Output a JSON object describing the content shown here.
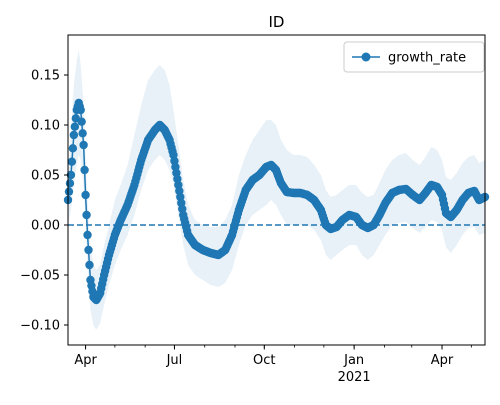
{
  "chart_data": {
    "type": "line",
    "title": "ID",
    "xlabel": "",
    "ylabel": "",
    "x_range": [
      "2020-03-14",
      "2021-05-15"
    ],
    "ylim": [
      -0.12,
      0.19
    ],
    "grid": false,
    "legend": "top-right",
    "x_ticks": [
      {
        "date": "2020-04-01",
        "label": "Apr",
        "sublabel": ""
      },
      {
        "date": "2020-07-01",
        "label": "Jul",
        "sublabel": ""
      },
      {
        "date": "2020-10-01",
        "label": "Oct",
        "sublabel": ""
      },
      {
        "date": "2021-01-01",
        "label": "Jan",
        "sublabel": "2021"
      },
      {
        "date": "2021-04-01",
        "label": "Apr",
        "sublabel": ""
      }
    ],
    "y_ticks": [
      {
        "value": -0.1,
        "label": "−0.10"
      },
      {
        "value": -0.05,
        "label": "−0.05"
      },
      {
        "value": 0.0,
        "label": "0.00"
      },
      {
        "value": 0.05,
        "label": "0.05"
      },
      {
        "value": 0.1,
        "label": "0.10"
      },
      {
        "value": 0.15,
        "label": "0.15"
      }
    ],
    "reference_line": {
      "value": 0.0,
      "style": "dashed"
    },
    "series": [
      {
        "name": "growth_rate",
        "color": "#1f77b4",
        "marker": "circle",
        "points": [
          [
            "2020-03-14",
            0.025,
            0.0,
            0.05
          ],
          [
            "2020-03-17",
            0.05,
            0.015,
            0.09
          ],
          [
            "2020-03-20",
            0.09,
            0.04,
            0.14
          ],
          [
            "2020-03-23",
            0.115,
            0.06,
            0.165
          ],
          [
            "2020-03-25",
            0.122,
            0.07,
            0.175
          ],
          [
            "2020-03-27",
            0.115,
            0.065,
            0.16
          ],
          [
            "2020-03-30",
            0.08,
            0.04,
            0.12
          ],
          [
            "2020-04-01",
            0.03,
            0.0,
            0.07
          ],
          [
            "2020-04-03",
            -0.01,
            -0.045,
            0.025
          ],
          [
            "2020-04-06",
            -0.055,
            -0.085,
            -0.02
          ],
          [
            "2020-04-09",
            -0.072,
            -0.1,
            -0.04
          ],
          [
            "2020-04-12",
            -0.075,
            -0.105,
            -0.045
          ],
          [
            "2020-04-16",
            -0.068,
            -0.098,
            -0.04
          ],
          [
            "2020-04-20",
            -0.05,
            -0.08,
            -0.02
          ],
          [
            "2020-04-25",
            -0.03,
            -0.06,
            0.0
          ],
          [
            "2020-05-01",
            -0.01,
            -0.04,
            0.025
          ],
          [
            "2020-05-07",
            0.005,
            -0.025,
            0.04
          ],
          [
            "2020-05-14",
            0.02,
            -0.01,
            0.06
          ],
          [
            "2020-05-21",
            0.04,
            0.01,
            0.09
          ],
          [
            "2020-05-28",
            0.065,
            0.035,
            0.12
          ],
          [
            "2020-06-04",
            0.085,
            0.055,
            0.145
          ],
          [
            "2020-06-11",
            0.095,
            0.065,
            0.155
          ],
          [
            "2020-06-16",
            0.1,
            0.07,
            0.16
          ],
          [
            "2020-06-21",
            0.095,
            0.065,
            0.155
          ],
          [
            "2020-06-26",
            0.085,
            0.055,
            0.14
          ],
          [
            "2020-06-30",
            0.07,
            0.04,
            0.115
          ],
          [
            "2020-07-05",
            0.04,
            0.01,
            0.08
          ],
          [
            "2020-07-10",
            0.01,
            -0.02,
            0.045
          ],
          [
            "2020-07-15",
            -0.01,
            -0.04,
            0.02
          ],
          [
            "2020-07-22",
            -0.02,
            -0.05,
            0.005
          ],
          [
            "2020-07-30",
            -0.025,
            -0.055,
            0.0
          ],
          [
            "2020-08-07",
            -0.028,
            -0.06,
            -0.002
          ],
          [
            "2020-08-15",
            -0.03,
            -0.062,
            -0.002
          ],
          [
            "2020-08-22",
            -0.025,
            -0.058,
            0.005
          ],
          [
            "2020-08-29",
            -0.01,
            -0.045,
            0.02
          ],
          [
            "2020-09-05",
            0.015,
            -0.02,
            0.05
          ],
          [
            "2020-09-12",
            0.035,
            0.0,
            0.07
          ],
          [
            "2020-09-19",
            0.045,
            0.01,
            0.085
          ],
          [
            "2020-09-26",
            0.05,
            0.015,
            0.095
          ],
          [
            "2020-10-03",
            0.058,
            0.02,
            0.105
          ],
          [
            "2020-10-08",
            0.06,
            0.025,
            0.105
          ],
          [
            "2020-10-13",
            0.055,
            0.02,
            0.1
          ],
          [
            "2020-10-18",
            0.042,
            0.01,
            0.085
          ],
          [
            "2020-10-24",
            0.033,
            0.0,
            0.075
          ],
          [
            "2020-10-31",
            0.032,
            0.0,
            0.07
          ],
          [
            "2020-11-07",
            0.032,
            0.0,
            0.07
          ],
          [
            "2020-11-14",
            0.03,
            0.0,
            0.068
          ],
          [
            "2020-11-21",
            0.025,
            -0.005,
            0.06
          ],
          [
            "2020-11-28",
            0.015,
            -0.015,
            0.05
          ],
          [
            "2020-12-03",
            0.0,
            -0.03,
            0.035
          ],
          [
            "2020-12-08",
            -0.004,
            -0.035,
            0.028
          ],
          [
            "2020-12-14",
            -0.002,
            -0.03,
            0.03
          ],
          [
            "2020-12-20",
            0.005,
            -0.025,
            0.035
          ],
          [
            "2020-12-27",
            0.01,
            -0.02,
            0.04
          ],
          [
            "2021-01-03",
            0.008,
            -0.02,
            0.04
          ],
          [
            "2021-01-09",
            0.0,
            -0.03,
            0.032
          ],
          [
            "2021-01-15",
            -0.003,
            -0.035,
            0.028
          ],
          [
            "2021-01-21",
            0.0,
            -0.03,
            0.03
          ],
          [
            "2021-01-27",
            0.01,
            -0.02,
            0.042
          ],
          [
            "2021-02-02",
            0.022,
            -0.01,
            0.055
          ],
          [
            "2021-02-09",
            0.032,
            0.0,
            0.065
          ],
          [
            "2021-02-16",
            0.035,
            0.002,
            0.07
          ],
          [
            "2021-02-23",
            0.036,
            0.003,
            0.072
          ],
          [
            "2021-03-02",
            0.03,
            -0.003,
            0.065
          ],
          [
            "2021-03-09",
            0.025,
            -0.008,
            0.06
          ],
          [
            "2021-03-15",
            0.032,
            -0.002,
            0.068
          ],
          [
            "2021-03-21",
            0.04,
            0.005,
            0.078
          ],
          [
            "2021-03-27",
            0.038,
            0.003,
            0.075
          ],
          [
            "2021-04-01",
            0.03,
            -0.005,
            0.065
          ],
          [
            "2021-04-05",
            0.012,
            -0.022,
            0.048
          ],
          [
            "2021-04-10",
            0.008,
            -0.028,
            0.045
          ],
          [
            "2021-04-16",
            0.015,
            -0.02,
            0.052
          ],
          [
            "2021-04-22",
            0.025,
            -0.01,
            0.062
          ],
          [
            "2021-04-28",
            0.032,
            -0.003,
            0.068
          ],
          [
            "2021-05-04",
            0.034,
            -0.002,
            0.07
          ],
          [
            "2021-05-09",
            0.025,
            -0.01,
            0.062
          ],
          [
            "2021-05-15",
            0.028,
            -0.008,
            0.065
          ]
        ]
      }
    ]
  }
}
